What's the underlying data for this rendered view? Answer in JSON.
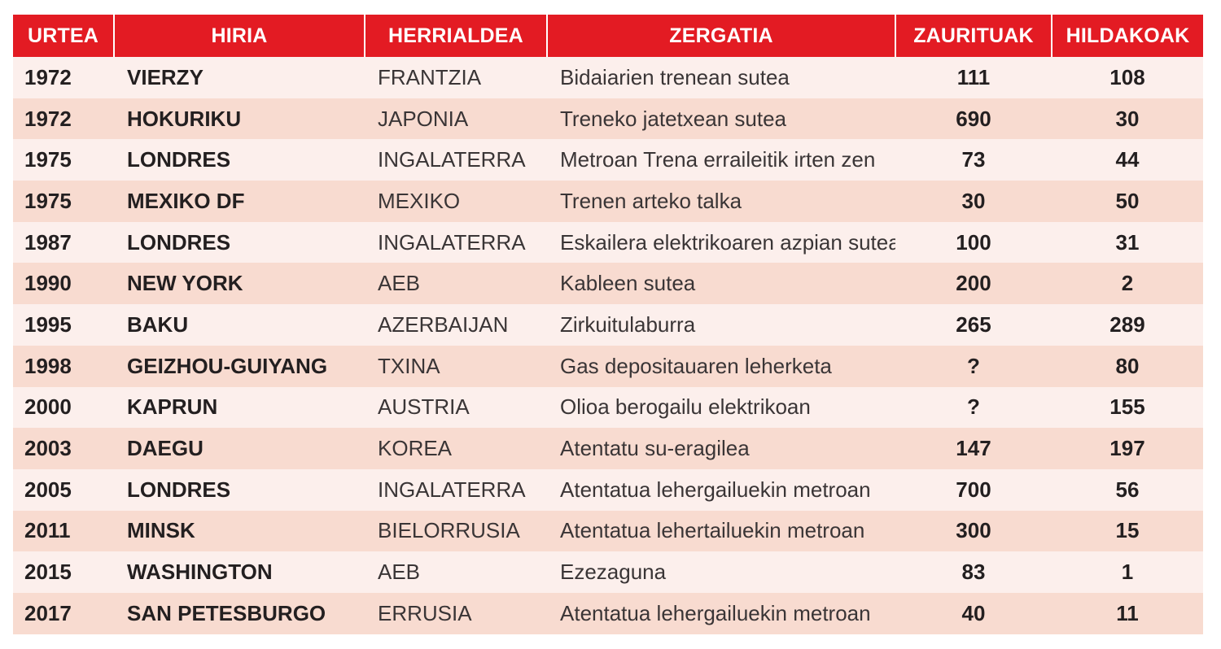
{
  "headers": {
    "year": "URTEA",
    "city": "HIRIA",
    "country": "HERRIALDEA",
    "cause": "ZERGATIA",
    "injured": "ZAURITUAK",
    "deaths": "HILDAKOAK"
  },
  "rows": [
    {
      "year": "1972",
      "city": "VIERZY",
      "country": "FRANTZIA",
      "cause": "Bidaiarien trenean sutea",
      "injured": "111",
      "deaths": "108"
    },
    {
      "year": "1972",
      "city": "HOKURIKU",
      "country": "JAPONIA",
      "cause": "Treneko jatetxean sutea",
      "injured": "690",
      "deaths": "30"
    },
    {
      "year": "1975",
      "city": "LONDRES",
      "country": "INGALATERRA",
      "cause": "Metroan Trena erraileitik irten zen",
      "injured": "73",
      "deaths": "44"
    },
    {
      "year": "1975",
      "city": "MEXIKO DF",
      "country": "MEXIKO",
      "cause": "Trenen arteko talka",
      "injured": "30",
      "deaths": "50"
    },
    {
      "year": "1987",
      "city": "LONDRES",
      "country": "INGALATERRA",
      "cause": "Eskailera elektrikoaren azpian sutea",
      "injured": "100",
      "deaths": "31"
    },
    {
      "year": "1990",
      "city": "NEW YORK",
      "country": "AEB",
      "cause": "Kableen sutea",
      "injured": "200",
      "deaths": "2"
    },
    {
      "year": "1995",
      "city": "BAKU",
      "country": "AZERBAIJAN",
      "cause": "Zirkuitulaburra",
      "injured": "265",
      "deaths": "289"
    },
    {
      "year": "1998",
      "city": "GEIZHOU-GUIYANG",
      "country": "TXINA",
      "cause": "Gas depositauaren leherketa",
      "injured": "?",
      "deaths": "80"
    },
    {
      "year": "2000",
      "city": "KAPRUN",
      "country": "AUSTRIA",
      "cause": "Olioa berogailu elektrikoan",
      "injured": "?",
      "deaths": "155"
    },
    {
      "year": "2003",
      "city": "DAEGU",
      "country": "KOREA",
      "cause": "Atentatu su-eragilea",
      "injured": "147",
      "deaths": "197"
    },
    {
      "year": "2005",
      "city": "LONDRES",
      "country": "INGALATERRA",
      "cause": "Atentatua lehergailuekin metroan",
      "injured": "700",
      "deaths": "56"
    },
    {
      "year": "2011",
      "city": "MINSK",
      "country": "BIELORRUSIA",
      "cause": "Atentatua lehertailuekin metroan",
      "injured": "300",
      "deaths": "15"
    },
    {
      "year": "2015",
      "city": "WASHINGTON",
      "country": "AEB",
      "cause": "Ezezaguna",
      "injured": "83",
      "deaths": "1"
    },
    {
      "year": "2017",
      "city": "SAN PETESBURGO",
      "country": "ERRUSIA",
      "cause": "Atentatua lehergailuekin metroan",
      "injured": "40",
      "deaths": "11"
    }
  ],
  "colors": {
    "header_bg": "#e31b23",
    "row_light": "#fcefec",
    "row_dark": "#f8dbd0"
  }
}
